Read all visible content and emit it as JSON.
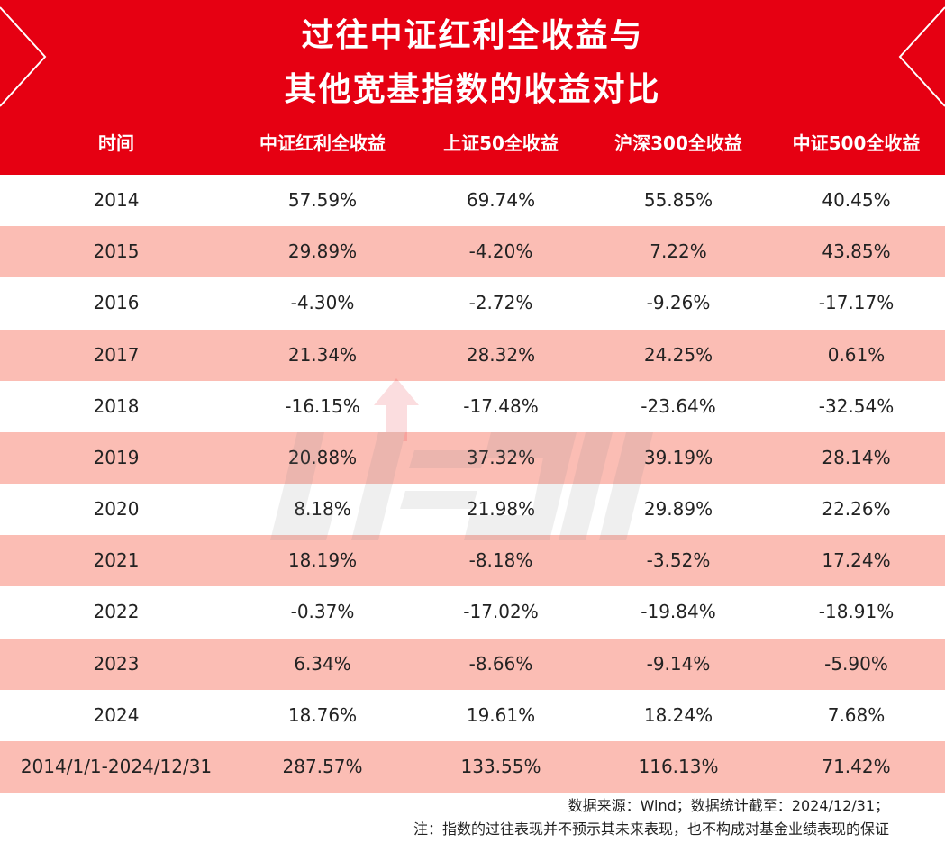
{
  "banner": {
    "title_line1": "过往中证红利全收益与",
    "title_line2": "其他宽基指数的收益对比"
  },
  "table": {
    "headers": [
      "时间",
      "中证红利全收益",
      "上证50全收益",
      "沪深300全收益",
      "中证500全收益"
    ],
    "rows": [
      [
        "2014",
        "57.59%",
        "69.74%",
        "55.85%",
        "40.45%"
      ],
      [
        "2015",
        "29.89%",
        "-4.20%",
        "7.22%",
        "43.85%"
      ],
      [
        "2016",
        "-4.30%",
        "-2.72%",
        "-9.26%",
        "-17.17%"
      ],
      [
        "2017",
        "21.34%",
        "28.32%",
        "24.25%",
        "0.61%"
      ],
      [
        "2018",
        "-16.15%",
        "-17.48%",
        "-23.64%",
        "-32.54%"
      ],
      [
        "2019",
        "20.88%",
        "37.32%",
        "39.19%",
        "28.14%"
      ],
      [
        "2020",
        "8.18%",
        "21.98%",
        "29.89%",
        "22.26%"
      ],
      [
        "2021",
        "18.19%",
        "-8.18%",
        "-3.52%",
        "17.24%"
      ],
      [
        "2022",
        "-0.37%",
        "-17.02%",
        "-19.84%",
        "-18.91%"
      ],
      [
        "2023",
        "6.34%",
        "-8.66%",
        "-9.14%",
        "-5.90%"
      ],
      [
        "2024",
        "18.76%",
        "19.61%",
        "18.24%",
        "7.68%"
      ],
      [
        "2014/1/1-2024/12/31",
        "287.57%",
        "133.55%",
        "116.13%",
        "71.42%"
      ]
    ]
  },
  "footer": {
    "source": "数据来源：Wind；数据统计截至：2024/12/31；",
    "note": "注：指数的过往表现并不预示其未来表现，也不构成对基金业绩表现的保证"
  },
  "colors": {
    "brand_red": "#e60012",
    "row_shade": "#fbbdb4"
  }
}
